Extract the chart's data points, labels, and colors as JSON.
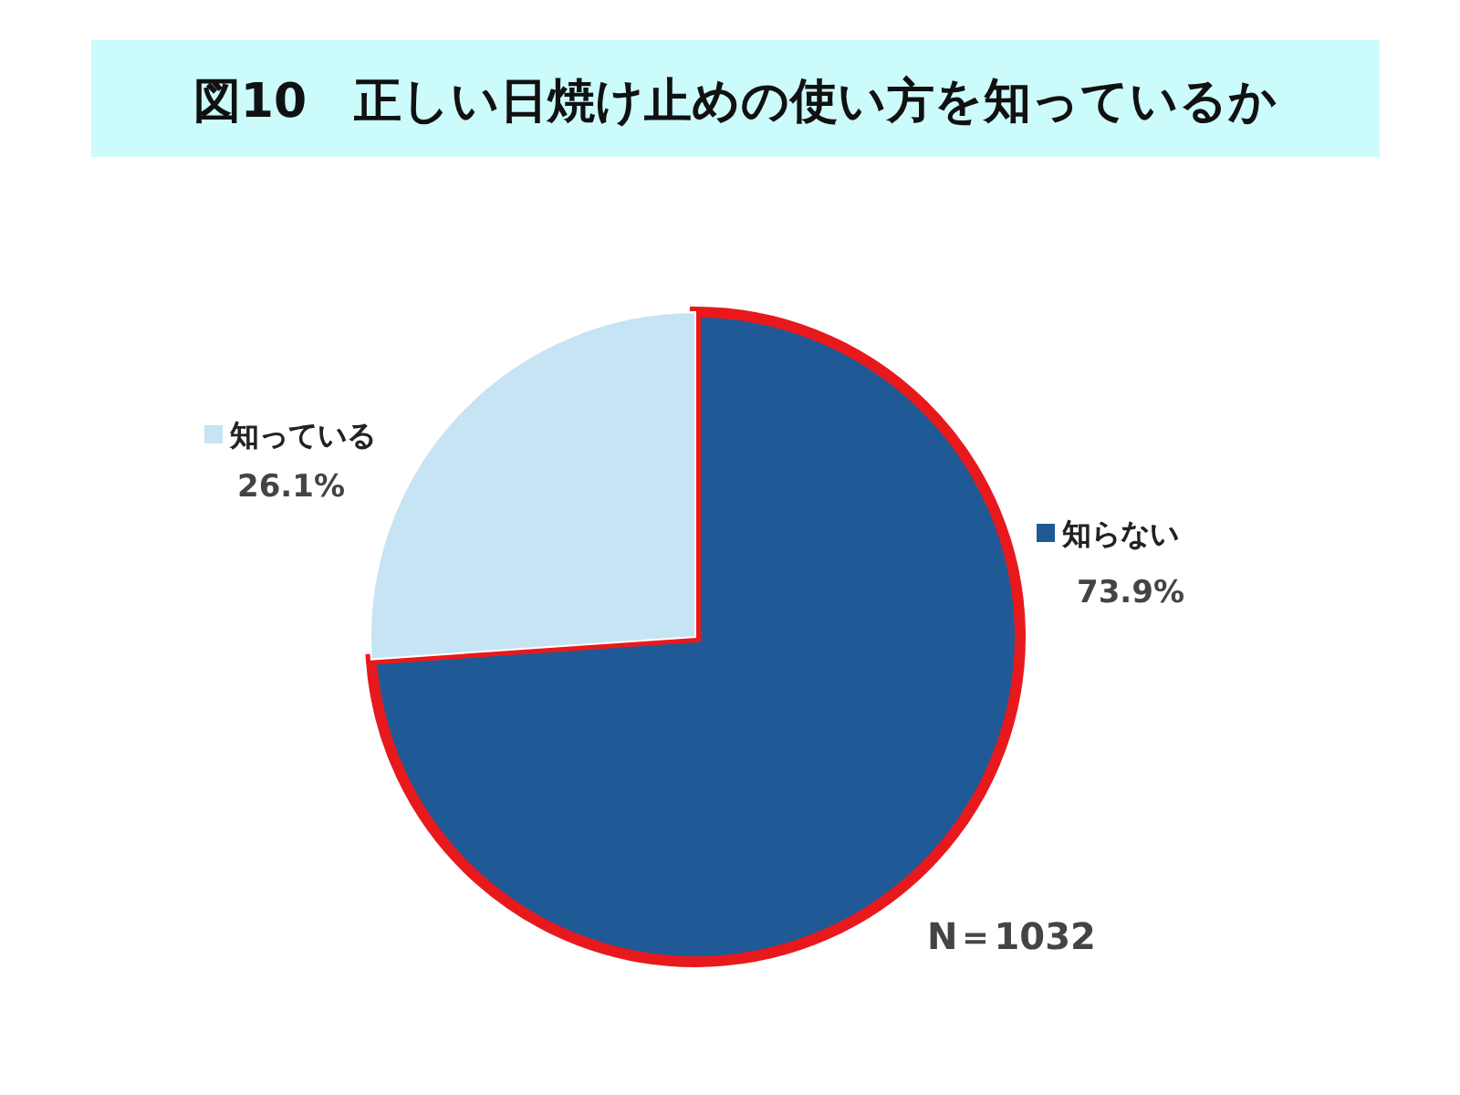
{
  "chart_data": {
    "type": "pie",
    "title": "図10　正しい日焼け止めの使い方を知っているか",
    "categories": [
      "知らない",
      "知っている"
    ],
    "values": [
      73.9,
      26.1
    ],
    "colors": [
      "#1f5a96",
      "#c6e4f3"
    ],
    "value_labels": [
      "73.9%",
      "26.1%"
    ],
    "annotations": [
      "N＝1032"
    ],
    "legend": "right"
  }
}
